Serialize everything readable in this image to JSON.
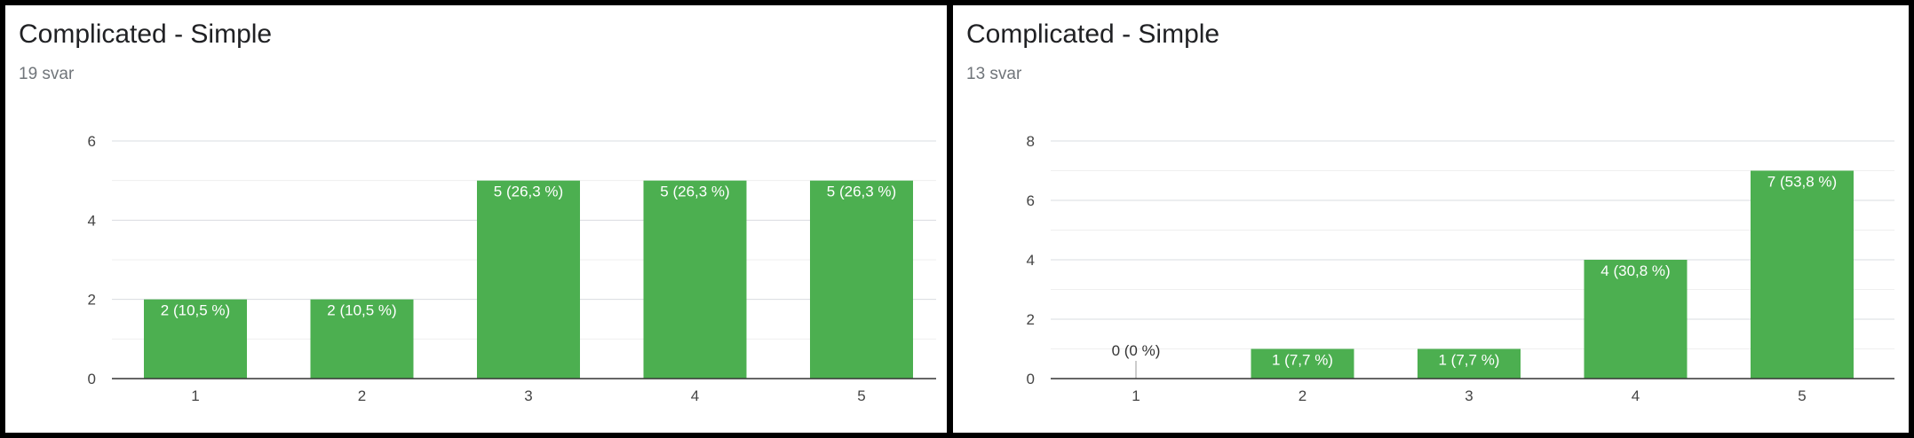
{
  "chart_data": [
    {
      "type": "bar",
      "title": "Complicated - Simple",
      "subtitle": "19 svar",
      "categories": [
        "1",
        "2",
        "3",
        "4",
        "5"
      ],
      "values": [
        2,
        2,
        5,
        5,
        5
      ],
      "data_labels": [
        "2 (10,5 %)",
        "2 (10,5 %)",
        "5 (26,3 %)",
        "5 (26,3 %)",
        "5 (26,3 %)"
      ],
      "yticks": [
        0,
        2,
        4,
        6
      ],
      "ylim": [
        0,
        6
      ],
      "xlabel": "",
      "ylabel": "",
      "grid": true,
      "bar_color": "#4caf50"
    },
    {
      "type": "bar",
      "title": "Complicated - Simple",
      "subtitle": "13 svar",
      "categories": [
        "1",
        "2",
        "3",
        "4",
        "5"
      ],
      "values": [
        0,
        1,
        1,
        4,
        7
      ],
      "data_labels": [
        "0 (0 %)",
        "1 (7,7 %)",
        "1 (7,7 %)",
        "4 (30,8 %)",
        "7 (53,8 %)"
      ],
      "yticks": [
        0,
        2,
        4,
        6,
        8
      ],
      "ylim": [
        0,
        8
      ],
      "xlabel": "",
      "ylabel": "",
      "grid": true,
      "bar_color": "#4caf50"
    }
  ]
}
